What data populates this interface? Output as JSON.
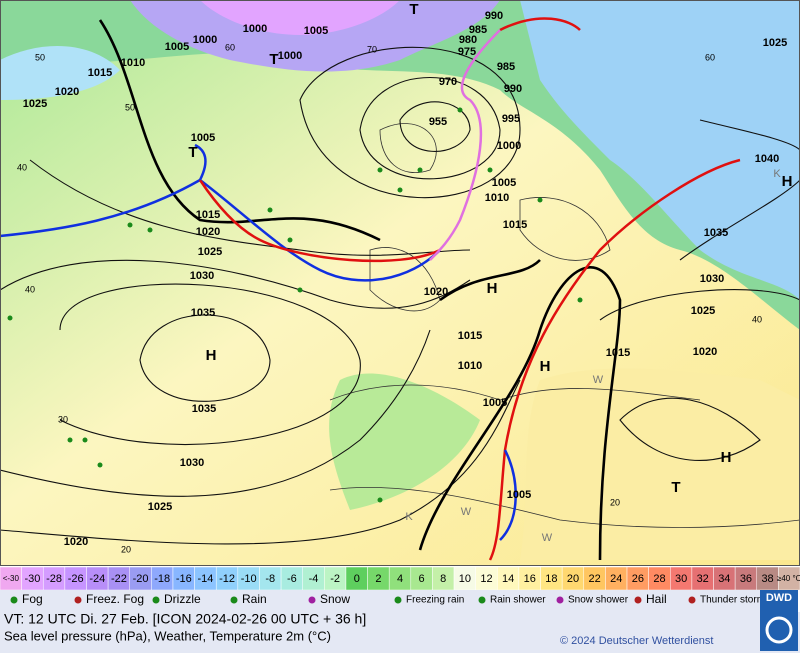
{
  "map": {
    "pressure_labels": [
      "1005",
      "1000",
      "1000",
      "1000",
      "1005",
      "985",
      "990",
      "980",
      "975",
      "970",
      "955",
      "985",
      "990",
      "995",
      "1000",
      "1005",
      "1010",
      "1015",
      "1020",
      "1015",
      "1010",
      "1005",
      "1005",
      "1015",
      "1020",
      "1025",
      "1030",
      "1035",
      "1040",
      "1025",
      "1010",
      "1015",
      "1020",
      "1025",
      "1005",
      "1015",
      "1020",
      "1025",
      "1030",
      "1035",
      "1035",
      "1030",
      "1025",
      "1020"
    ],
    "temperature_labels": [
      "50",
      "40",
      "40",
      "30",
      "20",
      "50",
      "70",
      "60",
      "60",
      "40",
      "20"
    ],
    "centers": [
      "T",
      "T",
      "T",
      "H",
      "H",
      "H",
      "H",
      "H",
      "T"
    ],
    "airmass_letters": [
      "W",
      "W",
      "W",
      "K",
      "K"
    ]
  },
  "colorscale": {
    "items": [
      {
        "label": "<-30",
        "color": "#f0a8f0"
      },
      {
        "label": "-30",
        "color": "#e2a4ff"
      },
      {
        "label": "-28",
        "color": "#d49cff"
      },
      {
        "label": "-26",
        "color": "#c694ff"
      },
      {
        "label": "-24",
        "color": "#b88ef8"
      },
      {
        "label": "-22",
        "color": "#a890f4"
      },
      {
        "label": "-20",
        "color": "#9a9cf2"
      },
      {
        "label": "-18",
        "color": "#8ea8fc"
      },
      {
        "label": "-16",
        "color": "#88b6ff"
      },
      {
        "label": "-14",
        "color": "#8cc4ff"
      },
      {
        "label": "-12",
        "color": "#90d0fc"
      },
      {
        "label": "-10",
        "color": "#9adcf6"
      },
      {
        "label": "-8",
        "color": "#a4e6ee"
      },
      {
        "label": "-6",
        "color": "#a8ece0"
      },
      {
        "label": "-4",
        "color": "#b0f0d2"
      },
      {
        "label": "-2",
        "color": "#bcf4c4"
      },
      {
        "label": "0",
        "color": "#5ecf5e"
      },
      {
        "label": "2",
        "color": "#76d86a"
      },
      {
        "label": "4",
        "color": "#90e07c"
      },
      {
        "label": "6",
        "color": "#a8e890"
      },
      {
        "label": "8",
        "color": "#c4f0a8"
      },
      {
        "label": "10",
        "color": "#f6fbe6"
      },
      {
        "label": "12",
        "color": "#fcfcd6"
      },
      {
        "label": "14",
        "color": "#fff8bc"
      },
      {
        "label": "16",
        "color": "#fff0a0"
      },
      {
        "label": "18",
        "color": "#ffe682"
      },
      {
        "label": "20",
        "color": "#ffd870"
      },
      {
        "label": "22",
        "color": "#ffc660"
      },
      {
        "label": "24",
        "color": "#ffb060"
      },
      {
        "label": "26",
        "color": "#ff9c62"
      },
      {
        "label": "28",
        "color": "#ff8a62"
      },
      {
        "label": "30",
        "color": "#f47870"
      },
      {
        "label": "32",
        "color": "#e67072"
      },
      {
        "label": "34",
        "color": "#d87276"
      },
      {
        "label": "36",
        "color": "#c87a7c"
      },
      {
        "label": "38",
        "color": "#b88a84"
      },
      {
        "label": "≥40 °C",
        "color": "#d2b2a4"
      }
    ]
  },
  "legend": {
    "items": [
      "Fog",
      "Freez. Fog",
      "Drizzle",
      "Rain",
      "Snow",
      "Freezing rain",
      "Rain shower",
      "Snow shower",
      "Hail",
      "Thunder storm"
    ]
  },
  "footer": {
    "valid_time": "VT: 12 UTC Di.  27 Feb. [ICON 2024-02-26  00 UTC + 36 h]",
    "description": "Sea level pressure (hPa), Weather, Temperature 2m (°C)",
    "copyright": "© 2024 Deutscher Wetterdienst",
    "logo": "DWD"
  }
}
